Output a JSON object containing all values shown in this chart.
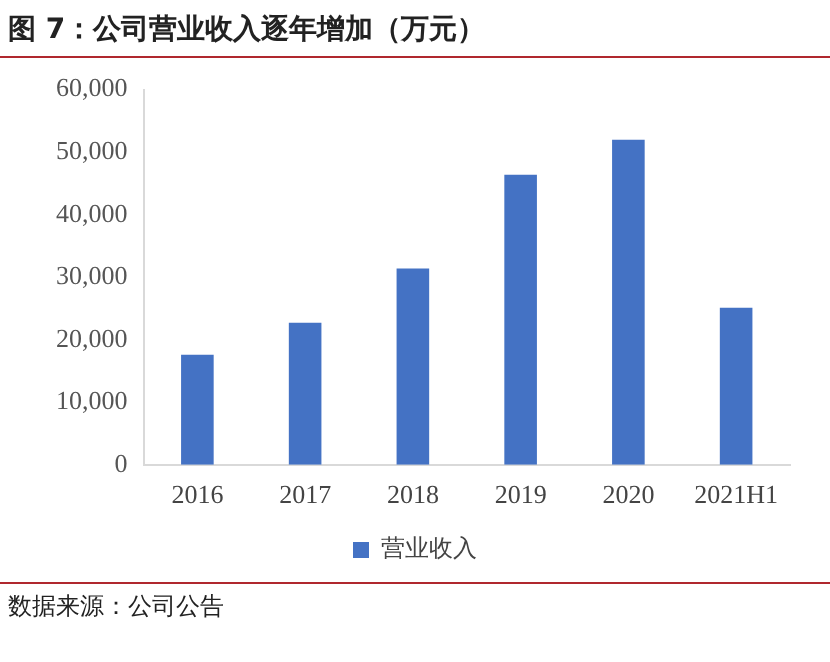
{
  "chart_data": {
    "type": "bar",
    "title": "图 7：公司营业收入逐年增加（万元）",
    "categories": [
      "2016",
      "2017",
      "2018",
      "2019",
      "2020",
      "2021H1"
    ],
    "series": [
      {
        "name": "营业收入",
        "color": "#4472c4",
        "values": [
          17600,
          22700,
          31400,
          46400,
          52000,
          25100
        ]
      }
    ],
    "ylim": [
      0,
      60000
    ],
    "yticks": [
      {
        "value": 0,
        "label": "0"
      },
      {
        "value": 10000,
        "label": "10,000"
      },
      {
        "value": 20000,
        "label": "20,000"
      },
      {
        "value": 30000,
        "label": "30,000"
      },
      {
        "value": 40000,
        "label": "40,000"
      },
      {
        "value": 50000,
        "label": "50,000"
      },
      {
        "value": 60000,
        "label": "60,000"
      }
    ],
    "grid": false,
    "legend": "bottom",
    "annotations": [
      "数据来源：公司公告"
    ]
  }
}
